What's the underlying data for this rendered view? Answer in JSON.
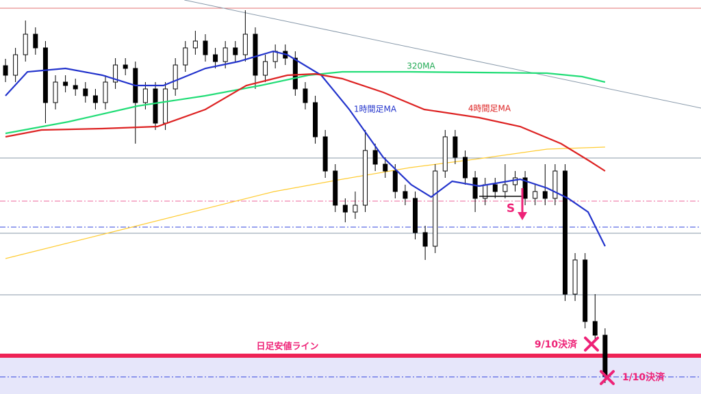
{
  "chart_data": {
    "type": "candlestick",
    "xlim": [
      -0.55,
      69.6
    ],
    "ylim": [
      0,
      576
    ],
    "up_color": "#ffffff",
    "down_color": "#000000",
    "candles": [
      [
        480,
        490,
        456,
        466
      ],
      [
        466,
        506,
        456,
        496
      ],
      [
        496,
        546,
        486,
        526
      ],
      [
        526,
        536,
        496,
        506
      ],
      [
        506,
        516,
        396,
        426
      ],
      [
        426,
        466,
        416,
        456
      ],
      [
        456,
        466,
        441,
        451
      ],
      [
        451,
        461,
        436,
        446
      ],
      [
        446,
        456,
        426,
        436
      ],
      [
        436,
        446,
        416,
        426
      ],
      [
        426,
        466,
        416,
        456
      ],
      [
        456,
        491,
        446,
        481
      ],
      [
        481,
        491,
        466,
        476
      ],
      [
        476,
        486,
        366,
        426
      ],
      [
        426,
        456,
        416,
        446
      ],
      [
        446,
        456,
        386,
        396
      ],
      [
        396,
        456,
        386,
        446
      ],
      [
        446,
        491,
        436,
        481
      ],
      [
        481,
        516,
        471,
        506
      ],
      [
        506,
        531,
        496,
        516
      ],
      [
        516,
        526,
        486,
        496
      ],
      [
        496,
        506,
        476,
        486
      ],
      [
        486,
        516,
        476,
        506
      ],
      [
        506,
        516,
        486,
        496
      ],
      [
        496,
        561,
        486,
        526
      ],
      [
        526,
        536,
        446,
        466
      ],
      [
        466,
        496,
        456,
        486
      ],
      [
        486,
        511,
        476,
        501
      ],
      [
        501,
        511,
        481,
        491
      ],
      [
        491,
        501,
        436,
        446
      ],
      [
        446,
        456,
        416,
        426
      ],
      [
        426,
        436,
        366,
        376
      ],
      [
        376,
        386,
        316,
        326
      ],
      [
        326,
        336,
        266,
        276
      ],
      [
        276,
        286,
        251,
        266
      ],
      [
        266,
        296,
        256,
        276
      ],
      [
        276,
        386,
        266,
        356
      ],
      [
        356,
        366,
        326,
        336
      ],
      [
        336,
        346,
        316,
        326
      ],
      [
        326,
        336,
        286,
        296
      ],
      [
        296,
        306,
        276,
        286
      ],
      [
        286,
        296,
        226,
        236
      ],
      [
        236,
        246,
        196,
        216
      ],
      [
        216,
        336,
        206,
        326
      ],
      [
        326,
        386,
        316,
        376
      ],
      [
        376,
        386,
        336,
        346
      ],
      [
        346,
        356,
        306,
        316
      ],
      [
        316,
        326,
        266,
        286
      ],
      [
        286,
        316,
        276,
        306
      ],
      [
        306,
        316,
        286,
        296
      ],
      [
        296,
        336,
        286,
        306
      ],
      [
        306,
        326,
        296,
        316
      ],
      [
        316,
        326,
        276,
        286
      ],
      [
        286,
        306,
        276,
        296
      ],
      [
        296,
        336,
        276,
        286
      ],
      [
        286,
        336,
        276,
        326
      ],
      [
        326,
        336,
        136,
        146
      ],
      [
        146,
        206,
        136,
        196
      ],
      [
        196,
        206,
        96,
        106
      ],
      [
        106,
        146,
        76,
        86
      ],
      [
        86,
        96,
        16,
        26
      ]
    ],
    "series": [
      {
        "name": "320MA",
        "color": "#22dd77",
        "x": [
          0,
          6.3,
          13.2,
          20,
          25.5,
          30.3,
          33.7,
          40.5,
          54.2,
          57.7,
          60
        ],
        "values": [
          381,
          398,
          421,
          436,
          451,
          466,
          471,
          471,
          469,
          464,
          456
        ]
      },
      {
        "name": "1時間足MA",
        "color": "#2233cc",
        "x": [
          0,
          2.2,
          6,
          9.7,
          13,
          15.8,
          20,
          23.3,
          26.8,
          28.2,
          31.6,
          34.4,
          37.8,
          40.6,
          42.6,
          44.7,
          47.4,
          51.5,
          54.2,
          56.3,
          58.3,
          60
        ],
        "values": [
          436,
          471,
          476,
          466,
          451,
          451,
          476,
          486,
          501,
          496,
          466,
          416,
          346,
          306,
          288,
          311,
          304,
          314,
          301,
          286,
          266,
          216
        ]
      },
      {
        "name": "4時間足MA",
        "color": "#dd2222",
        "x": [
          0,
          3.6,
          9.7,
          15.2,
          20,
          24.1,
          28.2,
          31,
          33.7,
          37.8,
          41.9,
          47.4,
          51.5,
          55.6,
          58.4,
          60
        ],
        "values": [
          376,
          386,
          388,
          391,
          416,
          451,
          466,
          468,
          461,
          441,
          416,
          404,
          391,
          366,
          341,
          326
        ]
      },
      {
        "color": "#ffcc33",
        "x": [
          0,
          13.2,
          26.9,
          33.7,
          40.5,
          47.4,
          54.2,
          60
        ],
        "values": [
          198,
          246,
          296,
          314,
          331,
          344,
          358,
          361
        ]
      }
    ],
    "levels": [
      {
        "value": 564,
        "color": "#e07070"
      },
      {
        "value": 345,
        "color": "#8899aa"
      },
      {
        "value": 282,
        "color": "#ee6699"
      },
      {
        "value": 244,
        "color": "#3344dd"
      },
      {
        "value": 235,
        "color": "#8899aa"
      },
      {
        "value": 145,
        "color": "#8899aa"
      },
      {
        "value": 56,
        "color": "#ee2255"
      },
      {
        "value": 25,
        "color": "#3344dd"
      }
    ],
    "trendline": {
      "x": [
        17.9,
        69.6
      ],
      "values": [
        576,
        418
      ],
      "color": "#8899aa"
    },
    "annotations": [
      "320MA",
      "1時間足MA",
      "4時間足MA",
      "日足安値ライン",
      "9/10決済",
      "1/10決済",
      "S"
    ]
  }
}
